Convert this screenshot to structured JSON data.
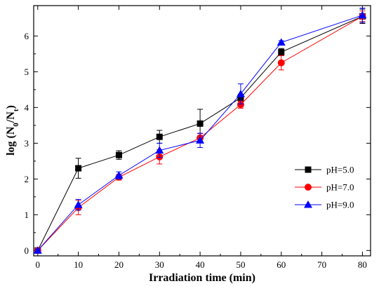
{
  "chart_data": {
    "type": "line",
    "title": "",
    "xlabel": "Irradiation time (min)",
    "ylabel": "log (N0/Nt)",
    "ylabel_parts": {
      "prefix": "log (N",
      "sub0": "0",
      "mid": "/N",
      "subt": "t",
      "suffix": ")"
    },
    "xlim": [
      -1,
      82
    ],
    "ylim": [
      -0.15,
      6.85
    ],
    "xticks": [
      0,
      10,
      20,
      30,
      40,
      50,
      60,
      70,
      80
    ],
    "yticks": [
      0,
      1,
      2,
      3,
      4,
      5,
      6
    ],
    "grid": false,
    "legend_position": "lower-right",
    "x": [
      0,
      10,
      20,
      30,
      40,
      50,
      60,
      80
    ],
    "series": [
      {
        "name": "pH=5.0",
        "color": "#000000",
        "marker": "square",
        "values": [
          0,
          2.3,
          2.67,
          3.18,
          3.55,
          4.27,
          5.55,
          6.55
        ],
        "errors": [
          0.03,
          0.28,
          0.12,
          0.18,
          0.4,
          0.1,
          0.1,
          0.2
        ]
      },
      {
        "name": "pH=7.0",
        "color": "#ff0000",
        "marker": "circle",
        "values": [
          0,
          1.2,
          2.05,
          2.62,
          3.15,
          4.08,
          5.25,
          6.55
        ],
        "errors": [
          0.03,
          0.2,
          0.08,
          0.2,
          0.12,
          0.1,
          0.2,
          0.15
        ]
      },
      {
        "name": "pH=9.0",
        "color": "#0000ff",
        "marker": "triangle",
        "values": [
          0,
          1.28,
          2.1,
          2.8,
          3.08,
          4.38,
          5.82,
          6.58
        ],
        "errors": [
          0.03,
          0.15,
          0.1,
          0.2,
          0.2,
          0.28,
          0.05,
          0.2
        ]
      }
    ]
  }
}
